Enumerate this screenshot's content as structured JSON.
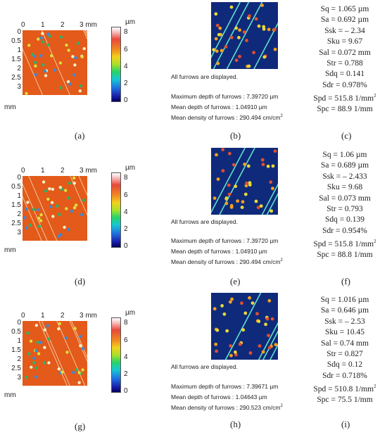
{
  "axis": {
    "x_ticks": [
      "0",
      "1",
      "2",
      "3 mm"
    ],
    "y_ticks": [
      "0",
      "0.5",
      "1",
      "1.5",
      "2",
      "2.5",
      "3"
    ],
    "y_unit": "mm",
    "colorbar_unit": "µm",
    "colorbar_ticks": [
      "8",
      "6",
      "4",
      "2",
      "0"
    ]
  },
  "furrow_header": "All furrows are displayed.",
  "rows": [
    {
      "map_label": "(a)",
      "furrow_label": "(b)",
      "params_label": "(c)",
      "max_depth": "Maximum depth of furrows : 7.39720 µm",
      "mean_depth": "Mean depth of furrows : 1.04910 µm",
      "mean_density": "Mean density of furrows : 290.494 cm/cm",
      "params": [
        "Sq = 1.065 µm",
        "Sa = 0.692 µm",
        "Ssk = – 2.34",
        "Sku = 9.67",
        "Sal = 0.072 mm",
        "Str = 0.788",
        "Sdq = 0.141",
        "Sdr = 0.978%",
        "Spd = 515.8 1/mm",
        "Spc = 88.9 1/mm"
      ]
    },
    {
      "map_label": "(d)",
      "furrow_label": "(e)",
      "params_label": "(f)",
      "max_depth": "Maximum depth of furrows : 7.39720 µm",
      "mean_depth": "Mean depth of furrows : 1.04910 µm",
      "mean_density": "Mean density of furrows : 290.494 cm/cm",
      "params": [
        "Sq = 1.06 µm",
        "Sa = 0.689 µm",
        "Ssk = – 2.433",
        "Sku = 9.68",
        "Sal = 0.073 mm",
        "Str = 0.793",
        "Sdq = 0.139",
        "Sdr = 0.954%",
        "Spd = 515.8 1/mm",
        "Spc = 88.8 1/mm"
      ]
    },
    {
      "map_label": "(g)",
      "furrow_label": "(h)",
      "params_label": "(i)",
      "max_depth": "Maximum depth of furrows : 7.39671 µm",
      "mean_depth": "Mean depth of furrows : 1.04643 µm",
      "mean_density": "Mean density of furrows : 290.523 cm/cm",
      "params": [
        "Sq = 1.016 µm",
        "Sa = 0.646 µm",
        "Ssk = – 2.53",
        "Sku = 10.45",
        "Sal = 0.74 mm",
        "Str = 0.827",
        "Sdq = 0.12",
        "Sdr = 0.718%",
        "Spd = 510.8 1/mm",
        "Spc = 75.5 1/mm"
      ]
    }
  ]
}
